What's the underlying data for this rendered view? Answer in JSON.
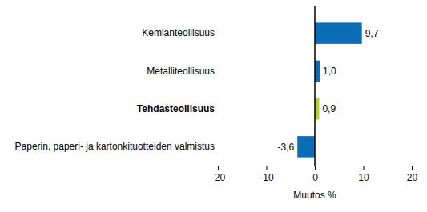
{
  "chart_data": {
    "type": "bar",
    "orientation": "horizontal",
    "categories": [
      "Kemianteollisuus",
      "Metalliteollisuus",
      "Tehdasteollisuus",
      "Paperin, paperi- ja kartonkituotteiden valmistus"
    ],
    "values": [
      9.7,
      1.0,
      0.9,
      -3.6
    ],
    "value_labels": [
      "9,7",
      "1,0",
      "0,9",
      "-3,6"
    ],
    "colors": [
      "#0a6db5",
      "#0a6db5",
      "#b3cf3a",
      "#0a6db5"
    ],
    "x_label": "Muutos %",
    "xlim": [
      -20,
      20
    ],
    "xticks": [
      -20,
      -10,
      0,
      10,
      20
    ],
    "grid": false,
    "data_labels": true
  }
}
